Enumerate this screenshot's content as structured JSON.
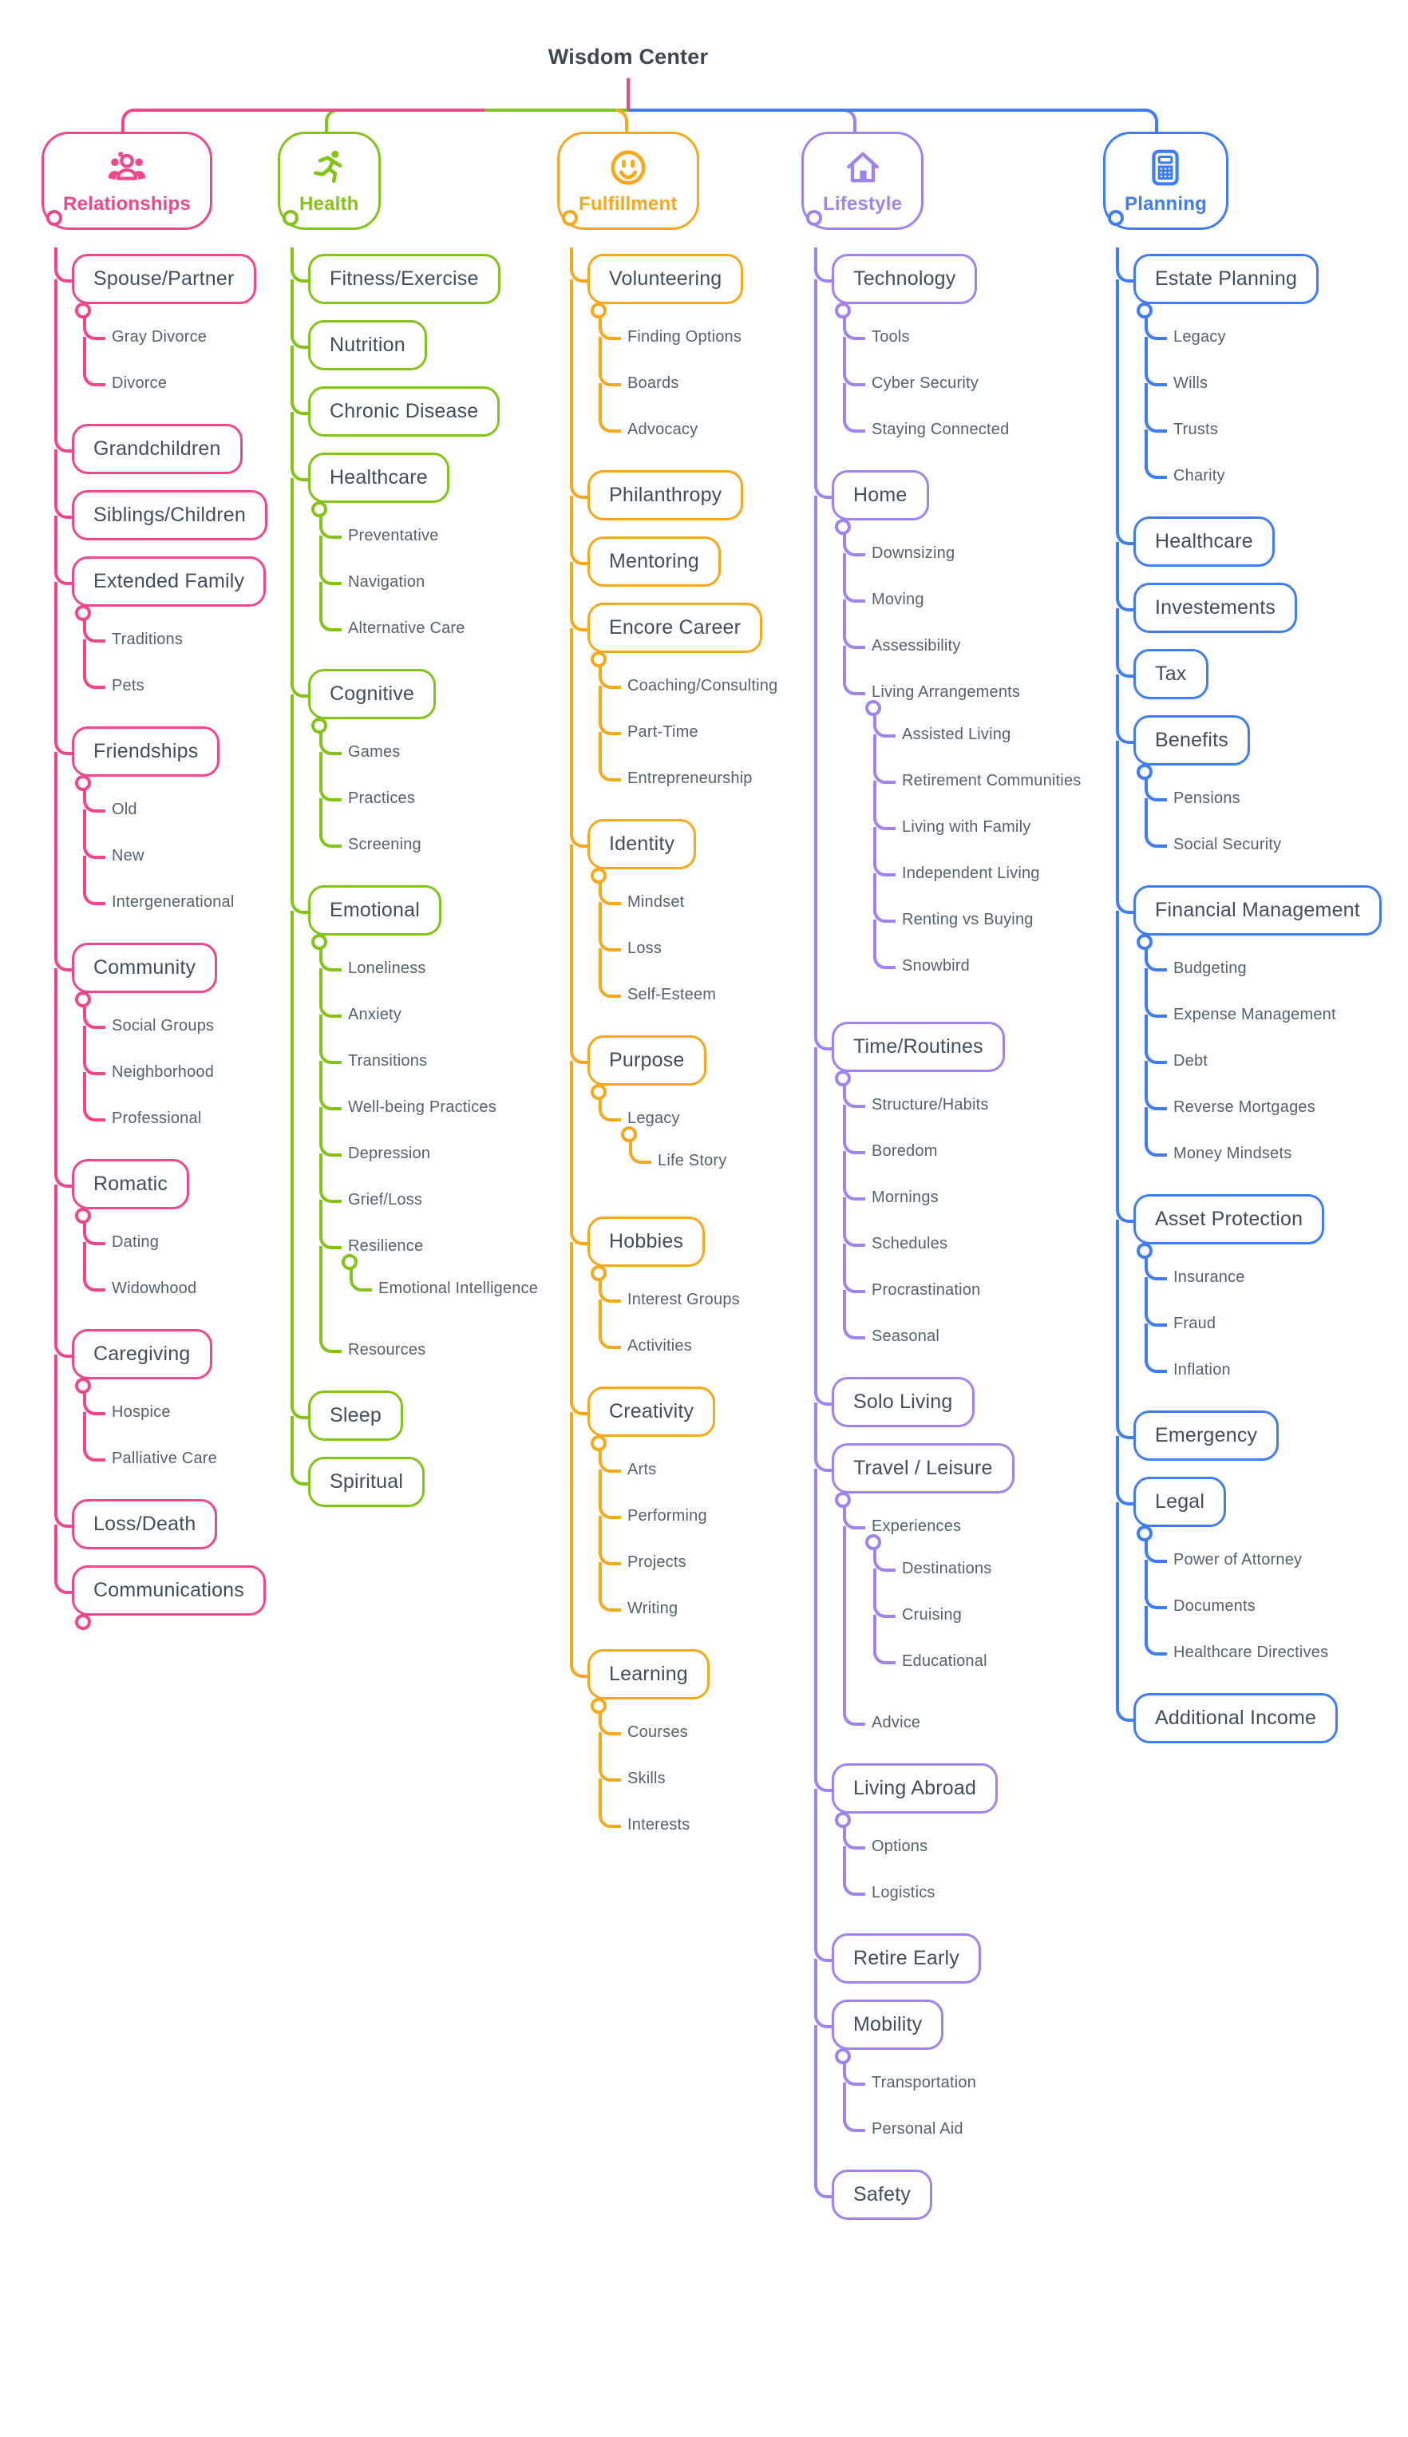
{
  "title": "Wisdom Center",
  "palette": {
    "relationships": "#f0478c",
    "health": "#82c517",
    "fulfillment": "#f8a819",
    "lifestyle": "#a183f0",
    "planning": "#3f7df6",
    "box_text": "#414e5b",
    "leaf_text": "#57616c",
    "title_text": "#3d4752"
  },
  "branches": [
    {
      "label": "Relationships",
      "color": "#f0478c",
      "icon": "people",
      "children": [
        {
          "label": "Spouse/Partner",
          "children": [
            {
              "label": "Gray Divorce"
            },
            {
              "label": "Divorce"
            }
          ]
        },
        {
          "label": "Grandchildren"
        },
        {
          "label": "Siblings/Children"
        },
        {
          "label": "Extended Family",
          "children": [
            {
              "label": "Traditions"
            },
            {
              "label": "Pets"
            }
          ]
        },
        {
          "label": "Friendships",
          "children": [
            {
              "label": "Old"
            },
            {
              "label": "New"
            },
            {
              "label": "Intergenerational"
            }
          ]
        },
        {
          "label": "Community",
          "children": [
            {
              "label": "Social Groups"
            },
            {
              "label": "Neighborhood"
            },
            {
              "label": "Professional"
            }
          ]
        },
        {
          "label": "Romatic",
          "children": [
            {
              "label": "Dating"
            },
            {
              "label": "Widowhood"
            }
          ]
        },
        {
          "label": "Caregiving",
          "children": [
            {
              "label": "Hospice"
            },
            {
              "label": "Palliative Care"
            }
          ]
        },
        {
          "label": "Loss/Death"
        },
        {
          "label": "Communications",
          "stub": true
        }
      ]
    },
    {
      "label": "Health",
      "color": "#82c517",
      "icon": "runner",
      "children": [
        {
          "label": "Fitness/Exercise"
        },
        {
          "label": "Nutrition"
        },
        {
          "label": "Chronic Disease"
        },
        {
          "label": "Healthcare",
          "children": [
            {
              "label": "Preventative"
            },
            {
              "label": "Navigation"
            },
            {
              "label": "Alternative Care"
            }
          ]
        },
        {
          "label": "Cognitive",
          "children": [
            {
              "label": "Games"
            },
            {
              "label": "Practices"
            },
            {
              "label": "Screening"
            }
          ]
        },
        {
          "label": "Emotional",
          "children": [
            {
              "label": "Loneliness"
            },
            {
              "label": "Anxiety"
            },
            {
              "label": "Transitions"
            },
            {
              "label": "Well-being Practices"
            },
            {
              "label": "Depression"
            },
            {
              "label": "Grief/Loss"
            },
            {
              "label": "Resilience",
              "children": [
                {
                  "label": "Emotional Intelligence"
                }
              ]
            },
            {
              "label": "Resources"
            }
          ]
        },
        {
          "label": "Sleep"
        },
        {
          "label": "Spiritual"
        }
      ]
    },
    {
      "label": "Fulfillment",
      "color": "#f8a819",
      "icon": "smiley",
      "children": [
        {
          "label": "Volunteering",
          "children": [
            {
              "label": "Finding Options"
            },
            {
              "label": "Boards"
            },
            {
              "label": "Advocacy"
            }
          ]
        },
        {
          "label": "Philanthropy"
        },
        {
          "label": "Mentoring"
        },
        {
          "label": "Encore Career",
          "children": [
            {
              "label": "Coaching/Consulting"
            },
            {
              "label": "Part-Time"
            },
            {
              "label": "Entrepreneurship"
            }
          ]
        },
        {
          "label": "Identity",
          "children": [
            {
              "label": "Mindset"
            },
            {
              "label": "Loss"
            },
            {
              "label": "Self-Esteem"
            }
          ]
        },
        {
          "label": "Purpose",
          "children": [
            {
              "label": "Legacy",
              "children": [
                {
                  "label": "Life Story"
                }
              ]
            }
          ]
        },
        {
          "label": "Hobbies",
          "children": [
            {
              "label": "Interest Groups"
            },
            {
              "label": "Activities"
            }
          ]
        },
        {
          "label": "Creativity",
          "children": [
            {
              "label": "Arts"
            },
            {
              "label": "Performing"
            },
            {
              "label": "Projects"
            },
            {
              "label": "Writing"
            }
          ]
        },
        {
          "label": "Learning",
          "children": [
            {
              "label": "Courses"
            },
            {
              "label": "Skills"
            },
            {
              "label": "Interests"
            }
          ]
        }
      ]
    },
    {
      "label": "Lifestyle",
      "color": "#a183f0",
      "icon": "house",
      "children": [
        {
          "label": "Technology",
          "children": [
            {
              "label": "Tools"
            },
            {
              "label": "Cyber Security"
            },
            {
              "label": "Staying Connected"
            }
          ]
        },
        {
          "label": "Home",
          "children": [
            {
              "label": "Downsizing"
            },
            {
              "label": "Moving"
            },
            {
              "label": "Assessibility"
            },
            {
              "label": "Living Arrangements",
              "children": [
                {
                  "label": "Assisted Living"
                },
                {
                  "label": "Retirement Communities"
                },
                {
                  "label": "Living with Family"
                },
                {
                  "label": "Independent Living"
                },
                {
                  "label": "Renting vs Buying"
                },
                {
                  "label": "Snowbird"
                }
              ]
            }
          ]
        },
        {
          "label": "Time/Routines",
          "children": [
            {
              "label": "Structure/Habits"
            },
            {
              "label": "Boredom"
            },
            {
              "label": "Mornings"
            },
            {
              "label": "Schedules"
            },
            {
              "label": "Procrastination"
            },
            {
              "label": "Seasonal"
            }
          ]
        },
        {
          "label": "Solo Living"
        },
        {
          "label": "Travel / Leisure",
          "children": [
            {
              "label": "Experiences",
              "children": [
                {
                  "label": "Destinations"
                },
                {
                  "label": "Cruising"
                },
                {
                  "label": "Educational"
                }
              ]
            },
            {
              "label": "Advice"
            }
          ]
        },
        {
          "label": "Living Abroad",
          "children": [
            {
              "label": "Options"
            },
            {
              "label": "Logistics"
            }
          ]
        },
        {
          "label": "Retire Early"
        },
        {
          "label": "Mobility",
          "children": [
            {
              "label": "Transportation"
            },
            {
              "label": "Personal Aid"
            }
          ]
        },
        {
          "label": "Safety"
        }
      ]
    },
    {
      "label": "Planning",
      "color": "#3f7df6",
      "icon": "calculator",
      "children": [
        {
          "label": "Estate Planning",
          "children": [
            {
              "label": "Legacy"
            },
            {
              "label": "Wills"
            },
            {
              "label": "Trusts"
            },
            {
              "label": "Charity"
            }
          ]
        },
        {
          "label": "Healthcare"
        },
        {
          "label": "Investements"
        },
        {
          "label": "Tax"
        },
        {
          "label": "Benefits",
          "children": [
            {
              "label": "Pensions"
            },
            {
              "label": "Social Security"
            }
          ]
        },
        {
          "label": "Financial Management",
          "children": [
            {
              "label": "Budgeting"
            },
            {
              "label": "Expense Management"
            },
            {
              "label": "Debt"
            },
            {
              "label": "Reverse Mortgages"
            },
            {
              "label": "Money Mindsets"
            }
          ]
        },
        {
          "label": "Asset Protection",
          "children": [
            {
              "label": "Insurance"
            },
            {
              "label": "Fraud"
            },
            {
              "label": "Inflation"
            }
          ]
        },
        {
          "label": "Emergency"
        },
        {
          "label": "Legal",
          "children": [
            {
              "label": "Power of Attorney"
            },
            {
              "label": "Documents"
            },
            {
              "label": "Healthcare Directives"
            }
          ]
        },
        {
          "label": "Additional Income"
        }
      ]
    }
  ]
}
